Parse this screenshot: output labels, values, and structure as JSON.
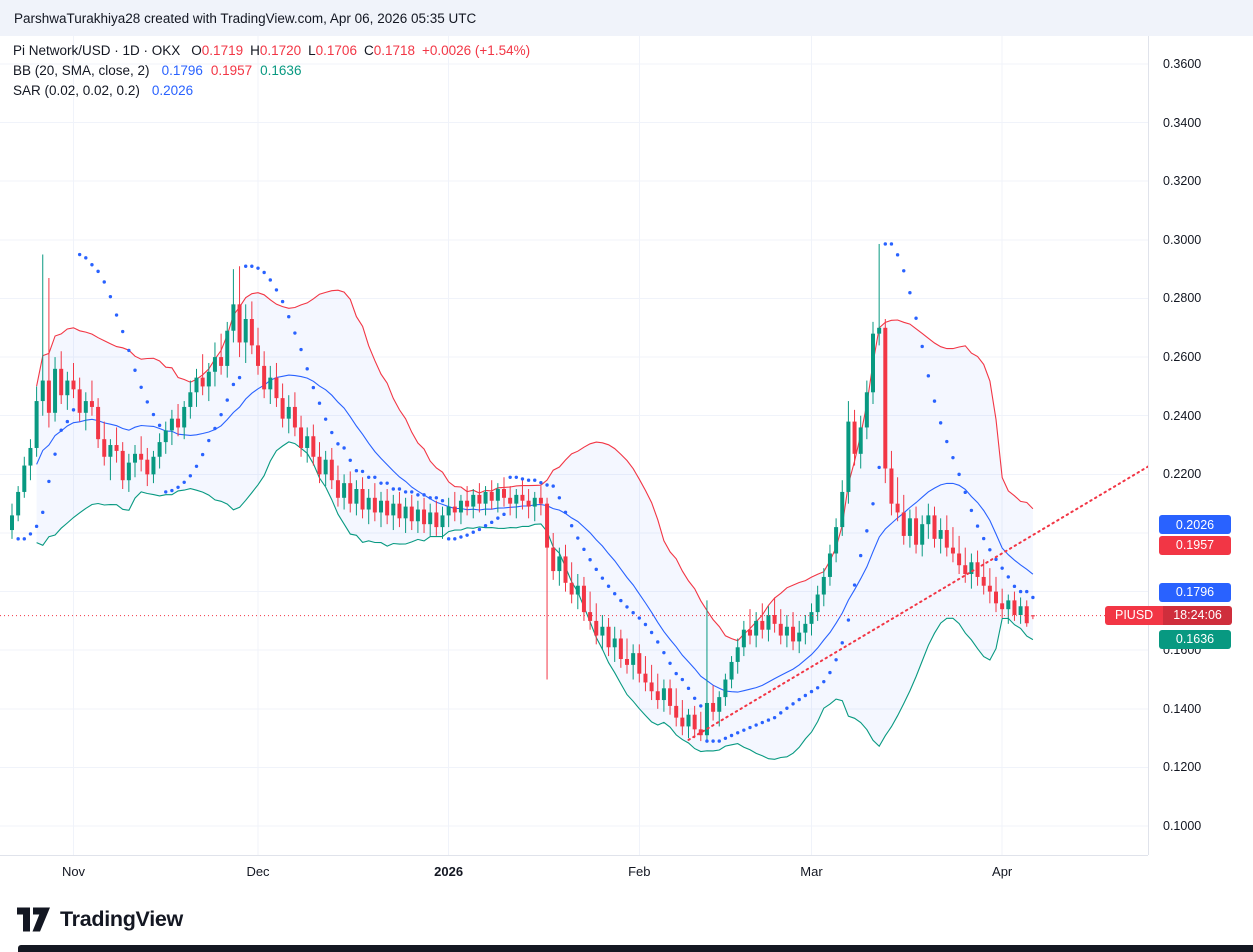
{
  "attribution": {
    "text": "ParshwaTurakhiya28 created with TradingView.com, Apr 06, 2026 05:35 UTC"
  },
  "legend": {
    "symbol_row": {
      "title": "Pi Network/USD · 1D · OKX",
      "o_label": "O",
      "o": "0.1719",
      "h_label": "H",
      "h": "0.1720",
      "l_label": "L",
      "l": "0.1706",
      "c_label": "C",
      "c": "0.1718",
      "change": "+0.0026 (+1.54%)"
    },
    "bb_row": {
      "title": "BB (20, SMA, close, 2)",
      "basis": "0.1796",
      "upper": "0.1957",
      "lower": "0.1636"
    },
    "sar_row": {
      "title": "SAR (0.02, 0.02, 0.2)",
      "value": "0.2026"
    }
  },
  "price_axis": {
    "ticks": [
      {
        "label": "0.3600",
        "price": 0.36
      },
      {
        "label": "0.3400",
        "price": 0.34
      },
      {
        "label": "0.3200",
        "price": 0.32
      },
      {
        "label": "0.3000",
        "price": 0.3
      },
      {
        "label": "0.2800",
        "price": 0.28
      },
      {
        "label": "0.2600",
        "price": 0.26
      },
      {
        "label": "0.2400",
        "price": 0.24
      },
      {
        "label": "0.2200",
        "price": 0.22
      },
      {
        "label": "0.1600",
        "price": 0.16
      },
      {
        "label": "0.1400",
        "price": 0.14
      },
      {
        "label": "0.1200",
        "price": 0.12
      },
      {
        "label": "0.1000",
        "price": 0.1
      }
    ],
    "badges": [
      {
        "name": "sar-value-badge",
        "label": "0.2026",
        "price": 0.2026,
        "bg": "#2962ff"
      },
      {
        "name": "bb-upper-badge",
        "label": "0.1957",
        "price": 0.1957,
        "bg": "#f23645"
      },
      {
        "name": "bb-basis-badge",
        "label": "0.1796",
        "price": 0.1796,
        "bg": "#2962ff"
      },
      {
        "name": "last-price-badge",
        "symbol": "PIUSD",
        "countdown": "18:24:06",
        "price": 0.1718,
        "bg": "#f23645",
        "bg_dark": "#cf2e3c"
      },
      {
        "name": "bb-lower-badge",
        "label": "0.1636",
        "price": 0.1636,
        "bg": "#089981"
      }
    ]
  },
  "time_axis": {
    "labels": [
      {
        "text": "Nov",
        "index": 10,
        "bold": false
      },
      {
        "text": "Dec",
        "index": 40,
        "bold": false
      },
      {
        "text": "2026",
        "index": 71,
        "bold": true
      },
      {
        "text": "Feb",
        "index": 102,
        "bold": false
      },
      {
        "text": "Mar",
        "index": 130,
        "bold": false
      },
      {
        "text": "Apr",
        "index": 161,
        "bold": false
      }
    ]
  },
  "footer": {
    "brand": "TradingView"
  },
  "chart_data": {
    "type": "candlestick",
    "symbol": "Pi Network/USD",
    "interval": "1D",
    "exchange": "OKX",
    "last_ohlc": {
      "open": 0.1719,
      "high": 0.172,
      "low": 0.1706,
      "close": 0.1718,
      "change": "+0.0026 (+1.54%)"
    },
    "current_price": 0.1718,
    "indicators": {
      "bollinger": {
        "params": "20, SMA, close, 2",
        "basis": 0.1796,
        "upper": 0.1957,
        "lower": 0.1636
      },
      "sar": {
        "params": "0.02, 0.02, 0.2",
        "value": 0.2026
      }
    },
    "y_axis": {
      "min": 0.1,
      "max": 0.36,
      "tick_step": 0.02
    },
    "x_axis_months": [
      "Nov",
      "Dec",
      "2026",
      "Feb",
      "Mar",
      "Apr"
    ],
    "trendline": {
      "i1": 110,
      "p1": 0.1294,
      "i2": 185,
      "p2": 0.223
    },
    "colors": {
      "up": "#089981",
      "down": "#f23645",
      "bb_upper": "#f23645",
      "bb_basis": "#2962ff",
      "bb_lower": "#089981",
      "bb_fill": "rgba(41,98,255,0.05)",
      "sar": "#2962ff",
      "trend": "#f23645",
      "grid": "#f0f3fa"
    },
    "candles": [
      [
        0.201,
        0.21,
        0.198,
        0.206
      ],
      [
        0.206,
        0.216,
        0.204,
        0.214
      ],
      [
        0.214,
        0.226,
        0.212,
        0.223
      ],
      [
        0.223,
        0.232,
        0.218,
        0.229
      ],
      [
        0.229,
        0.25,
        0.226,
        0.245
      ],
      [
        0.245,
        0.295,
        0.24,
        0.252
      ],
      [
        0.252,
        0.287,
        0.236,
        0.241
      ],
      [
        0.241,
        0.26,
        0.238,
        0.256
      ],
      [
        0.256,
        0.262,
        0.244,
        0.247
      ],
      [
        0.247,
        0.255,
        0.242,
        0.252
      ],
      [
        0.252,
        0.258,
        0.246,
        0.249
      ],
      [
        0.249,
        0.253,
        0.238,
        0.241
      ],
      [
        0.241,
        0.248,
        0.235,
        0.245
      ],
      [
        0.245,
        0.252,
        0.24,
        0.243
      ],
      [
        0.243,
        0.246,
        0.229,
        0.232
      ],
      [
        0.232,
        0.238,
        0.223,
        0.226
      ],
      [
        0.226,
        0.232,
        0.218,
        0.23
      ],
      [
        0.23,
        0.236,
        0.224,
        0.228
      ],
      [
        0.228,
        0.231,
        0.215,
        0.218
      ],
      [
        0.218,
        0.227,
        0.214,
        0.224
      ],
      [
        0.224,
        0.23,
        0.219,
        0.227
      ],
      [
        0.227,
        0.233,
        0.221,
        0.225
      ],
      [
        0.225,
        0.229,
        0.216,
        0.22
      ],
      [
        0.22,
        0.228,
        0.217,
        0.226
      ],
      [
        0.226,
        0.234,
        0.222,
        0.231
      ],
      [
        0.231,
        0.238,
        0.227,
        0.235
      ],
      [
        0.235,
        0.242,
        0.23,
        0.239
      ],
      [
        0.239,
        0.244,
        0.233,
        0.236
      ],
      [
        0.236,
        0.245,
        0.232,
        0.243
      ],
      [
        0.243,
        0.252,
        0.239,
        0.248
      ],
      [
        0.248,
        0.256,
        0.243,
        0.253
      ],
      [
        0.253,
        0.261,
        0.247,
        0.25
      ],
      [
        0.25,
        0.258,
        0.245,
        0.255
      ],
      [
        0.255,
        0.265,
        0.25,
        0.26
      ],
      [
        0.26,
        0.268,
        0.254,
        0.257
      ],
      [
        0.257,
        0.272,
        0.253,
        0.269
      ],
      [
        0.269,
        0.29,
        0.265,
        0.278
      ],
      [
        0.278,
        0.291,
        0.26,
        0.265
      ],
      [
        0.265,
        0.278,
        0.258,
        0.273
      ],
      [
        0.273,
        0.279,
        0.261,
        0.264
      ],
      [
        0.264,
        0.27,
        0.254,
        0.257
      ],
      [
        0.257,
        0.262,
        0.246,
        0.249
      ],
      [
        0.249,
        0.257,
        0.244,
        0.253
      ],
      [
        0.253,
        0.258,
        0.243,
        0.246
      ],
      [
        0.246,
        0.251,
        0.236,
        0.239
      ],
      [
        0.239,
        0.247,
        0.234,
        0.243
      ],
      [
        0.243,
        0.248,
        0.233,
        0.236
      ],
      [
        0.236,
        0.24,
        0.226,
        0.229
      ],
      [
        0.229,
        0.236,
        0.224,
        0.233
      ],
      [
        0.233,
        0.237,
        0.223,
        0.226
      ],
      [
        0.226,
        0.231,
        0.217,
        0.22
      ],
      [
        0.22,
        0.228,
        0.216,
        0.225
      ],
      [
        0.225,
        0.229,
        0.215,
        0.218
      ],
      [
        0.218,
        0.223,
        0.209,
        0.212
      ],
      [
        0.212,
        0.22,
        0.208,
        0.217
      ],
      [
        0.217,
        0.221,
        0.207,
        0.21
      ],
      [
        0.21,
        0.218,
        0.206,
        0.215
      ],
      [
        0.215,
        0.219,
        0.205,
        0.208
      ],
      [
        0.208,
        0.215,
        0.203,
        0.212
      ],
      [
        0.212,
        0.217,
        0.204,
        0.207
      ],
      [
        0.207,
        0.214,
        0.202,
        0.211
      ],
      [
        0.211,
        0.215,
        0.203,
        0.206
      ],
      [
        0.206,
        0.213,
        0.201,
        0.21
      ],
      [
        0.21,
        0.214,
        0.202,
        0.205
      ],
      [
        0.205,
        0.212,
        0.2,
        0.209
      ],
      [
        0.209,
        0.213,
        0.201,
        0.204
      ],
      [
        0.204,
        0.211,
        0.2,
        0.208
      ],
      [
        0.208,
        0.212,
        0.2,
        0.203
      ],
      [
        0.203,
        0.21,
        0.199,
        0.207
      ],
      [
        0.207,
        0.211,
        0.199,
        0.202
      ],
      [
        0.202,
        0.209,
        0.198,
        0.206
      ],
      [
        0.206,
        0.212,
        0.202,
        0.209
      ],
      [
        0.209,
        0.214,
        0.204,
        0.207
      ],
      [
        0.207,
        0.213,
        0.203,
        0.211
      ],
      [
        0.211,
        0.216,
        0.206,
        0.209
      ],
      [
        0.209,
        0.215,
        0.205,
        0.213
      ],
      [
        0.213,
        0.217,
        0.207,
        0.21
      ],
      [
        0.21,
        0.216,
        0.206,
        0.214
      ],
      [
        0.214,
        0.218,
        0.208,
        0.211
      ],
      [
        0.211,
        0.217,
        0.207,
        0.215
      ],
      [
        0.215,
        0.219,
        0.209,
        0.212
      ],
      [
        0.212,
        0.216,
        0.206,
        0.21
      ],
      [
        0.21,
        0.215,
        0.205,
        0.213
      ],
      [
        0.213,
        0.218,
        0.208,
        0.211
      ],
      [
        0.211,
        0.215,
        0.205,
        0.209
      ],
      [
        0.209,
        0.214,
        0.204,
        0.212
      ],
      [
        0.212,
        0.216,
        0.206,
        0.21
      ],
      [
        0.21,
        0.212,
        0.15,
        0.195
      ],
      [
        0.195,
        0.2,
        0.184,
        0.187
      ],
      [
        0.187,
        0.195,
        0.182,
        0.192
      ],
      [
        0.192,
        0.196,
        0.18,
        0.183
      ],
      [
        0.183,
        0.19,
        0.176,
        0.179
      ],
      [
        0.179,
        0.186,
        0.174,
        0.182
      ],
      [
        0.182,
        0.185,
        0.17,
        0.173
      ],
      [
        0.173,
        0.18,
        0.167,
        0.17
      ],
      [
        0.17,
        0.176,
        0.162,
        0.165
      ],
      [
        0.165,
        0.172,
        0.16,
        0.168
      ],
      [
        0.168,
        0.171,
        0.158,
        0.161
      ],
      [
        0.161,
        0.168,
        0.156,
        0.164
      ],
      [
        0.164,
        0.167,
        0.154,
        0.157
      ],
      [
        0.157,
        0.164,
        0.152,
        0.155
      ],
      [
        0.155,
        0.162,
        0.15,
        0.159
      ],
      [
        0.159,
        0.162,
        0.149,
        0.152
      ],
      [
        0.152,
        0.158,
        0.146,
        0.149
      ],
      [
        0.149,
        0.155,
        0.143,
        0.146
      ],
      [
        0.146,
        0.152,
        0.14,
        0.143
      ],
      [
        0.143,
        0.15,
        0.139,
        0.147
      ],
      [
        0.147,
        0.15,
        0.138,
        0.141
      ],
      [
        0.141,
        0.147,
        0.134,
        0.137
      ],
      [
        0.137,
        0.143,
        0.131,
        0.134
      ],
      [
        0.134,
        0.14,
        0.13,
        0.138
      ],
      [
        0.138,
        0.141,
        0.13,
        0.133
      ],
      [
        0.133,
        0.139,
        0.129,
        0.131
      ],
      [
        0.131,
        0.177,
        0.129,
        0.142
      ],
      [
        0.142,
        0.148,
        0.136,
        0.139
      ],
      [
        0.139,
        0.146,
        0.134,
        0.144
      ],
      [
        0.144,
        0.152,
        0.141,
        0.15
      ],
      [
        0.15,
        0.158,
        0.147,
        0.156
      ],
      [
        0.156,
        0.164,
        0.152,
        0.161
      ],
      [
        0.161,
        0.17,
        0.158,
        0.167
      ],
      [
        0.167,
        0.174,
        0.162,
        0.165
      ],
      [
        0.165,
        0.173,
        0.161,
        0.17
      ],
      [
        0.17,
        0.176,
        0.164,
        0.167
      ],
      [
        0.167,
        0.175,
        0.163,
        0.172
      ],
      [
        0.172,
        0.178,
        0.166,
        0.169
      ],
      [
        0.169,
        0.174,
        0.162,
        0.165
      ],
      [
        0.165,
        0.172,
        0.161,
        0.168
      ],
      [
        0.168,
        0.173,
        0.16,
        0.163
      ],
      [
        0.163,
        0.17,
        0.159,
        0.166
      ],
      [
        0.166,
        0.172,
        0.162,
        0.169
      ],
      [
        0.169,
        0.176,
        0.165,
        0.173
      ],
      [
        0.173,
        0.182,
        0.17,
        0.179
      ],
      [
        0.179,
        0.188,
        0.175,
        0.185
      ],
      [
        0.185,
        0.196,
        0.182,
        0.193
      ],
      [
        0.193,
        0.205,
        0.19,
        0.202
      ],
      [
        0.202,
        0.218,
        0.199,
        0.214
      ],
      [
        0.214,
        0.245,
        0.21,
        0.238
      ],
      [
        0.238,
        0.242,
        0.223,
        0.227
      ],
      [
        0.227,
        0.24,
        0.222,
        0.236
      ],
      [
        0.236,
        0.252,
        0.232,
        0.248
      ],
      [
        0.248,
        0.272,
        0.244,
        0.268
      ],
      [
        0.268,
        0.2986,
        0.264,
        0.27
      ],
      [
        0.27,
        0.273,
        0.217,
        0.222
      ],
      [
        0.222,
        0.228,
        0.206,
        0.21
      ],
      [
        0.21,
        0.219,
        0.204,
        0.207
      ],
      [
        0.207,
        0.213,
        0.196,
        0.199
      ],
      [
        0.199,
        0.208,
        0.195,
        0.205
      ],
      [
        0.205,
        0.209,
        0.193,
        0.196
      ],
      [
        0.196,
        0.206,
        0.192,
        0.203
      ],
      [
        0.203,
        0.21,
        0.198,
        0.206
      ],
      [
        0.206,
        0.209,
        0.195,
        0.198
      ],
      [
        0.198,
        0.205,
        0.193,
        0.201
      ],
      [
        0.201,
        0.206,
        0.192,
        0.195
      ],
      [
        0.195,
        0.202,
        0.19,
        0.193
      ],
      [
        0.193,
        0.199,
        0.186,
        0.189
      ],
      [
        0.189,
        0.195,
        0.183,
        0.186
      ],
      [
        0.186,
        0.193,
        0.181,
        0.19
      ],
      [
        0.19,
        0.194,
        0.182,
        0.185
      ],
      [
        0.185,
        0.191,
        0.179,
        0.182
      ],
      [
        0.182,
        0.188,
        0.176,
        0.18
      ],
      [
        0.18,
        0.185,
        0.173,
        0.176
      ],
      [
        0.176,
        0.181,
        0.171,
        0.174
      ],
      [
        0.174,
        0.179,
        0.169,
        0.177
      ],
      [
        0.177,
        0.18,
        0.17,
        0.172
      ],
      [
        0.172,
        0.178,
        0.169,
        0.175
      ],
      [
        0.175,
        0.177,
        0.168,
        0.1692
      ],
      [
        0.1719,
        0.172,
        0.1706,
        0.1718
      ]
    ]
  }
}
